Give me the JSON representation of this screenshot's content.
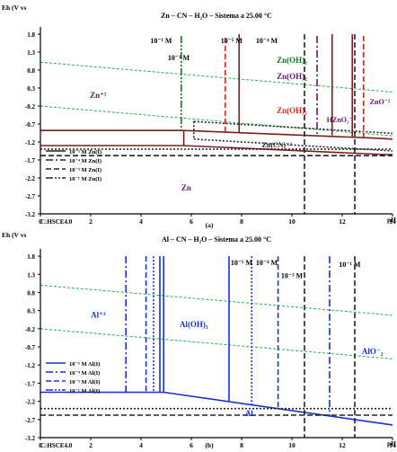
{
  "chart_data": [
    {
      "type": "line",
      "title": "Zn – CN – H₂O – Sistema a 25.00 °C",
      "ylabel": "Eh (V vs",
      "xlabel": "pH",
      "footer": "C:HSCE4.0",
      "caption": "(a)",
      "xlim": [
        0,
        14
      ],
      "ylim": [
        -3.2,
        2.0
      ],
      "xticks": [
        "0",
        "2",
        "4",
        "6",
        "8",
        "10",
        "12",
        "14"
      ],
      "yticks": [
        "1.8",
        "1.3",
        "0.8",
        "0.3",
        "-0.2",
        "-0.7",
        "-1.2",
        "-1.7",
        "-2.2",
        "-2.7",
        "-3.2"
      ],
      "colors": {
        "axis": "#000000",
        "frame_a": "#7a1f1f",
        "frame_b": "#1a2fd6",
        "water": "#22b24c",
        "red": "#e02020",
        "green": "#0a7a1f",
        "purple": "#5a1c5a",
        "dark": "#222222"
      },
      "legend": {
        "placement": "bottom-left",
        "entries": [
          {
            "label": "10⁻⁵ M Zn(I)",
            "style": "solid"
          },
          {
            "label": "10⁻⁴ M Zn(I)",
            "style": "dashdot"
          },
          {
            "label": "10⁻³ M Zn(I)",
            "style": "dashed"
          },
          {
            "label": "10⁻¹ M Zn(I)",
            "style": "dashdotdot"
          }
        ]
      },
      "water_lines": [
        {
          "x": [
            0,
            14
          ],
          "y": [
            1.02,
            0.19
          ]
        },
        {
          "x": [
            0,
            14
          ],
          "y": [
            -0.2,
            -1.03
          ]
        }
      ],
      "series": [
        {
          "style": "solid",
          "color": "frame_a",
          "x": [
            0,
            5.7,
            13.2,
            14
          ],
          "y": [
            -0.88,
            -0.88,
            -1.09,
            -1.12
          ]
        },
        {
          "style": "solid",
          "color": "frame_a",
          "x": [
            5.7,
            5.7
          ],
          "y": [
            -0.88,
            -1.3
          ]
        },
        {
          "style": "solid",
          "color": "frame_a",
          "x": [
            0,
            5.7,
            13.7,
            14
          ],
          "y": [
            -1.3,
            -1.3,
            -1.55,
            -1.55
          ]
        },
        {
          "style": "solid",
          "color": "frame_a",
          "x": [
            7.9,
            7.9
          ],
          "y": [
            1.8,
            -0.93
          ]
        },
        {
          "style": "solid",
          "color": "frame_a",
          "x": [
            11.6,
            11.6
          ],
          "y": [
            1.8,
            -1.02
          ]
        },
        {
          "style": "solid",
          "color": "frame_a",
          "x": [
            12.4,
            12.4
          ],
          "y": [
            1.8,
            -1.05
          ]
        },
        {
          "style": "dashed",
          "color": "red",
          "x": [
            7.35,
            7.35
          ],
          "y": [
            1.7,
            -0.9
          ]
        },
        {
          "style": "dashed",
          "color": "red",
          "x": [
            12.85,
            12.85
          ],
          "y": [
            1.75,
            -1.06
          ]
        },
        {
          "style": "dashdot",
          "color": "purple",
          "x": [
            11.0,
            11.0
          ],
          "y": [
            1.75,
            -0.98
          ]
        },
        {
          "style": "dashdotdot",
          "color": "green",
          "x": [
            5.6,
            5.6
          ],
          "y": [
            1.75,
            -0.88
          ]
        },
        {
          "style": "dotted",
          "color": "dark",
          "x": [
            6.1,
            14
          ],
          "y": [
            -0.63,
            -0.96
          ]
        },
        {
          "style": "dotted",
          "color": "dark",
          "x": [
            6.1,
            14
          ],
          "y": [
            -1.12,
            -1.45
          ]
        },
        {
          "style": "dotted",
          "color": "dark",
          "x": [
            6.1,
            6.1
          ],
          "y": [
            -0.63,
            -1.12
          ]
        },
        {
          "style": "dotted",
          "color": "dark",
          "x": [
            0,
            14
          ],
          "y": [
            -1.4,
            -1.4
          ]
        },
        {
          "style": "dashed",
          "color": "dark",
          "x": [
            0,
            14
          ],
          "y": [
            -1.58,
            -1.58
          ]
        },
        {
          "style": "dashed",
          "color": "dark",
          "x": [
            10.5,
            10.5
          ],
          "y": [
            1.8,
            -3.2
          ]
        },
        {
          "style": "dashed",
          "color": "dark",
          "x": [
            12.5,
            12.5
          ],
          "y": [
            1.8,
            -3.2
          ]
        }
      ],
      "annotations": [
        {
          "text": "Zn⁺²",
          "x": 2.3,
          "y": 0.02,
          "color": "purple",
          "size": 9
        },
        {
          "text": "10⁻¹ M",
          "x": 4.8,
          "y": 1.55,
          "color": "axis",
          "size": 8
        },
        {
          "text": "10⁻³ M",
          "x": 5.5,
          "y": 1.08,
          "color": "axis",
          "size": 8
        },
        {
          "text": "10⁻⁵ M",
          "x": 7.6,
          "y": 1.55,
          "color": "axis",
          "size": 8
        },
        {
          "text": "10⁻⁴ M",
          "x": 9.0,
          "y": 1.55,
          "color": "axis",
          "size": 8
        },
        {
          "text": "Zn(OH)₂",
          "x": 10.0,
          "y": 1.0,
          "color": "green",
          "size": 9
        },
        {
          "text": "Zn(OH)₂",
          "x": 10.0,
          "y": 0.55,
          "color": "purple",
          "size": 9
        },
        {
          "text": "HZnO₂⁻",
          "x": 11.9,
          "y": -0.65,
          "color": "purple",
          "size": 8
        },
        {
          "text": "ZnO⁻²",
          "x": 13.5,
          "y": -0.15,
          "color": "purple",
          "size": 8
        },
        {
          "text": "Zn(OH)₂",
          "x": 10.0,
          "y": -0.4,
          "color": "red",
          "size": 9
        },
        {
          "text": "Zn(CN)⁻²",
          "x": 9.4,
          "y": -1.35,
          "color": "dark",
          "size": 8
        },
        {
          "text": "Zn",
          "x": 5.8,
          "y": -2.55,
          "color": "purple",
          "size": 9
        }
      ]
    },
    {
      "type": "line",
      "title": "Al – CN – H₂O – Sistema a 25.00 °C",
      "ylabel": "Eh (V vs",
      "xlabel": "pH",
      "footer": "C:HSCE4.0",
      "caption": "(b)",
      "xlim": [
        0,
        14
      ],
      "ylim": [
        -3.2,
        2.0
      ],
      "xticks": [
        "0",
        "2",
        "4",
        "6",
        "8",
        "10",
        "12",
        "14"
      ],
      "yticks": [
        "1.8",
        "1.3",
        "0.8",
        "0.3",
        "-0.2",
        "-0.7",
        "-1.2",
        "-1.7",
        "-2.2",
        "-2.7",
        "-3.2"
      ],
      "colors": {
        "axis": "#000000",
        "frame_a": "#7a1f1f",
        "frame_b": "#1a2fd6",
        "water": "#22b24c",
        "red": "#e02020",
        "green": "#0a7a1f",
        "purple": "#5a1c5a",
        "dark": "#222222"
      },
      "legend": {
        "placement": "bottom-left",
        "entries": [
          {
            "label": "10⁻⁵ M Al(I)",
            "style": "solid"
          },
          {
            "label": "10⁻⁴ M Al(I)",
            "style": "dashdot"
          },
          {
            "label": "10⁻³ M Al(I)",
            "style": "dashed"
          },
          {
            "label": "10⁻¹ M Al(I)",
            "style": "dashdotdot"
          }
        ]
      },
      "water_lines": [
        {
          "x": [
            0,
            14
          ],
          "y": [
            1.0,
            0.17
          ]
        },
        {
          "x": [
            0,
            14
          ],
          "y": [
            -0.2,
            -1.03
          ]
        }
      ],
      "series": [
        {
          "style": "solid",
          "color": "frame_b",
          "x": [
            0,
            4.9,
            14
          ],
          "y": [
            -1.95,
            -1.95,
            -2.85
          ]
        },
        {
          "style": "solid",
          "color": "frame_b",
          "x": [
            4.9,
            4.9
          ],
          "y": [
            1.8,
            -1.95
          ]
        },
        {
          "style": "solid",
          "color": "frame_b",
          "x": [
            4.75,
            4.75
          ],
          "y": [
            1.8,
            -1.93
          ]
        },
        {
          "style": "solid",
          "color": "frame_b",
          "x": [
            7.5,
            7.5
          ],
          "y": [
            1.8,
            -2.21
          ]
        },
        {
          "style": "dotted",
          "color": "frame_b",
          "x": [
            8.4,
            8.4
          ],
          "y": [
            1.8,
            -2.3
          ]
        },
        {
          "style": "dashed",
          "color": "frame_b",
          "x": [
            9.45,
            9.45
          ],
          "y": [
            1.8,
            -2.41
          ]
        },
        {
          "style": "dashdot",
          "color": "frame_b",
          "x": [
            11.5,
            11.5
          ],
          "y": [
            1.8,
            -2.62
          ]
        },
        {
          "style": "dashdot",
          "color": "frame_b",
          "x": [
            3.4,
            3.4
          ],
          "y": [
            1.8,
            -1.95
          ]
        },
        {
          "style": "dashed",
          "color": "frame_b",
          "x": [
            4.2,
            4.2
          ],
          "y": [
            1.8,
            -1.95
          ]
        },
        {
          "style": "dotted",
          "color": "frame_b",
          "x": [
            4.5,
            4.5
          ],
          "y": [
            1.8,
            -1.95
          ]
        },
        {
          "style": "dotted",
          "color": "dark",
          "x": [
            0,
            14
          ],
          "y": [
            -2.4,
            -2.4
          ]
        },
        {
          "style": "dashed",
          "color": "dark",
          "x": [
            0,
            14
          ],
          "y": [
            -2.58,
            -2.58
          ]
        },
        {
          "style": "dashed",
          "color": "dark",
          "x": [
            10.5,
            10.5
          ],
          "y": [
            1.8,
            -3.2
          ]
        },
        {
          "style": "dashed",
          "color": "dark",
          "x": [
            12.5,
            12.5
          ],
          "y": [
            1.8,
            -3.2
          ]
        }
      ],
      "annotations": [
        {
          "text": "Al⁺³",
          "x": 2.3,
          "y": 0.1,
          "color": "frame_b",
          "size": 9
        },
        {
          "text": "Al(OH)₃",
          "x": 6.1,
          "y": -0.15,
          "color": "frame_b",
          "size": 9
        },
        {
          "text": "10⁻⁵ M",
          "x": 8.0,
          "y": 1.55,
          "color": "axis",
          "size": 8
        },
        {
          "text": "10⁻⁴ M",
          "x": 9.0,
          "y": 1.55,
          "color": "axis",
          "size": 8
        },
        {
          "text": "10⁻³ M",
          "x": 10.0,
          "y": 1.2,
          "color": "axis",
          "size": 8
        },
        {
          "text": "10⁻¹ M",
          "x": 12.3,
          "y": 1.5,
          "color": "axis",
          "size": 8
        },
        {
          "text": "AlO⁻₂",
          "x": 13.2,
          "y": -0.9,
          "color": "frame_b",
          "size": 9
        },
        {
          "text": "Al",
          "x": 8.3,
          "y": -2.6,
          "color": "frame_b",
          "size": 9
        }
      ]
    }
  ]
}
